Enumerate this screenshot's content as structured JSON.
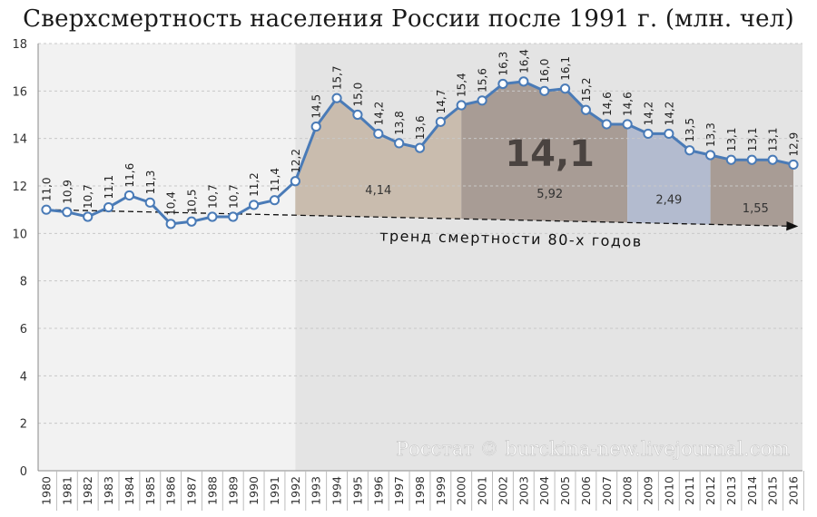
{
  "title": "Сверхсмертность населения России после 1991 г. (млн. чел)",
  "watermark": "Росстат © burckina-new.livejournal.com",
  "chart_data": {
    "type": "line",
    "title": "Сверхсмертность населения России после 1991 г. (млн. чел)",
    "xlabel": "",
    "ylabel": "",
    "ylim": [
      0,
      18
    ],
    "yticks": [
      "0",
      "2",
      "4",
      "6",
      "8",
      "10",
      "12",
      "14",
      "16",
      "18"
    ],
    "grid": true,
    "categories": [
      "1980",
      "1981",
      "1982",
      "1983",
      "1984",
      "1985",
      "1986",
      "1987",
      "1988",
      "1989",
      "1990",
      "1991",
      "1992",
      "1993",
      "1994",
      "1995",
      "1996",
      "1997",
      "1998",
      "1999",
      "2000",
      "2001",
      "2002",
      "2003",
      "2004",
      "2005",
      "2006",
      "2007",
      "2008",
      "2009",
      "2010",
      "2011",
      "2012",
      "2013",
      "2014",
      "2015",
      "2016"
    ],
    "values": [
      11.0,
      10.9,
      10.7,
      11.1,
      11.6,
      11.3,
      10.4,
      10.5,
      10.7,
      10.7,
      11.2,
      11.4,
      12.2,
      14.5,
      15.7,
      15.0,
      14.2,
      13.8,
      13.6,
      14.7,
      15.4,
      15.6,
      16.3,
      16.4,
      16.0,
      16.1,
      15.2,
      14.6,
      14.6,
      14.2,
      14.2,
      13.5,
      13.3,
      13.1,
      13.1,
      13.1,
      12.9
    ],
    "value_labels": [
      "11,0",
      "10,9",
      "10,7",
      "11,1",
      "11,6",
      "11,3",
      "10,4",
      "10,5",
      "10,7",
      "10,7",
      "11,2",
      "11,4",
      "12,2",
      "14,5",
      "15,7",
      "15,0",
      "14,2",
      "13,8",
      "13,6",
      "14,7",
      "15,4",
      "15,6",
      "16,3",
      "16,4",
      "16,0",
      "16,1",
      "15,2",
      "14,6",
      "14,6",
      "14,2",
      "14,2",
      "13,5",
      "13,3",
      "13,1",
      "13,1",
      "13,1",
      "12,9"
    ],
    "trend": {
      "label": "тренд смертности 80-х годов",
      "from": [
        "1980",
        11.0
      ],
      "to": [
        "2016",
        10.3
      ]
    },
    "excess_areas": [
      {
        "from": "1992",
        "to": "2000",
        "label": "4,14",
        "color": "#c9bcae"
      },
      {
        "from": "2000",
        "to": "2008",
        "label": "5,92",
        "color": "#a89c95"
      },
      {
        "from": "2008",
        "to": "2012",
        "label": "2,49",
        "color": "#b3bbcf"
      },
      {
        "from": "2012",
        "to": "2016",
        "label": "1,55",
        "color": "#a89c95"
      }
    ],
    "total_label": "14,1",
    "colors": {
      "line": "#4a7bb7",
      "marker_fill": "#ffffff",
      "bg_before": "#f2f2f2",
      "bg_after": "#e4e4e4"
    }
  }
}
